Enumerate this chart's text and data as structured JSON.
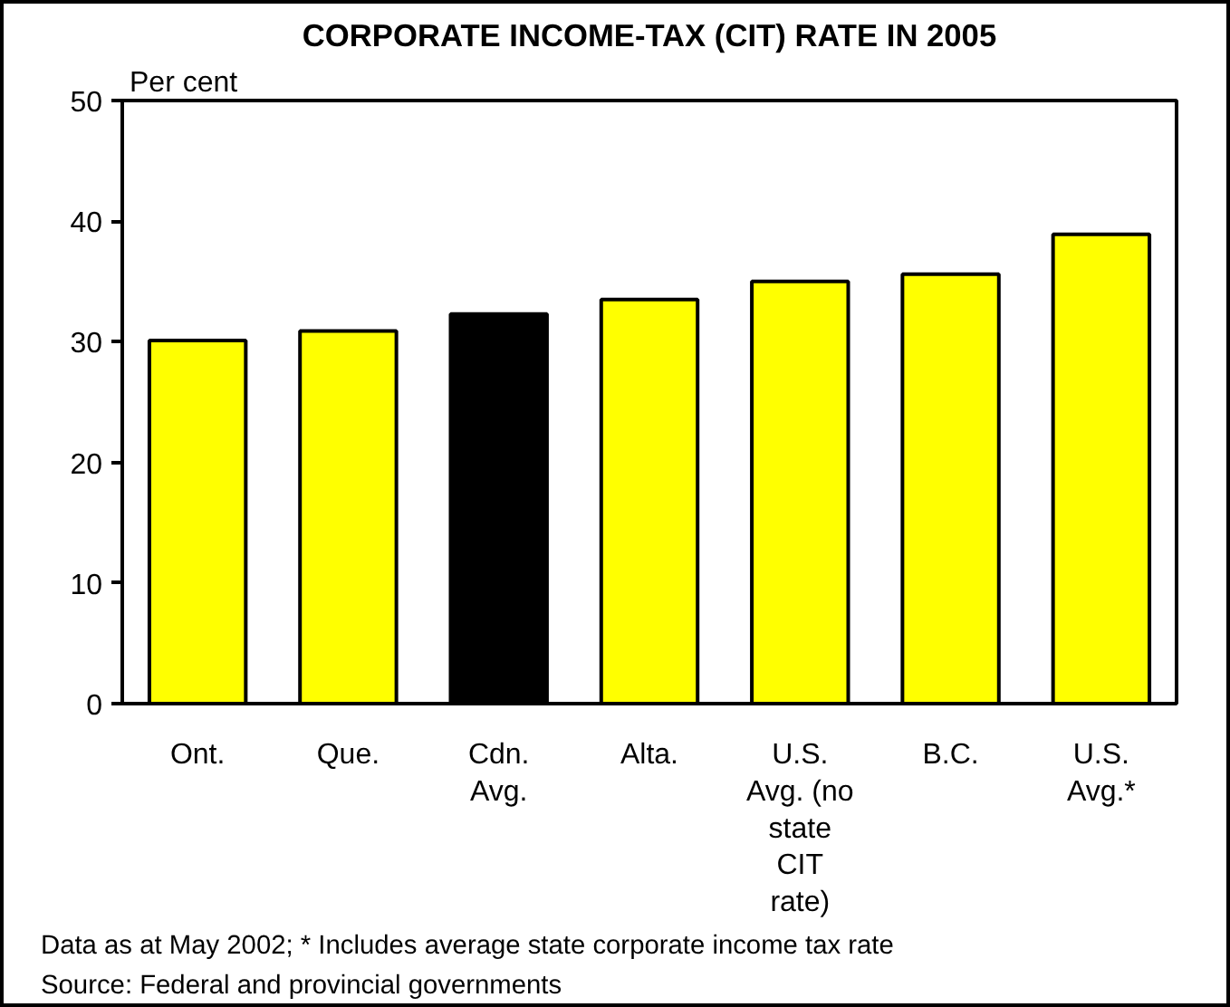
{
  "chart_data": {
    "type": "bar",
    "title": "CORPORATE INCOME-TAX (CIT) RATE IN 2005",
    "ylabel": "Per cent",
    "categories": [
      "Ont.",
      "Que.",
      "Cdn. Avg.",
      "Alta.",
      "U.S. Avg. (no state CIT rate)",
      "B.C.",
      "U.S. Avg.*"
    ],
    "values": [
      30.1,
      30.9,
      32.3,
      33.5,
      35.0,
      35.6,
      38.9
    ],
    "colors": [
      "#ffff00",
      "#ffff00",
      "#000000",
      "#ffff00",
      "#ffff00",
      "#ffff00",
      "#ffff00"
    ],
    "ylim": [
      0,
      50
    ],
    "yticks": [
      0,
      10,
      20,
      30,
      40,
      50
    ],
    "grid": false,
    "annotations": [
      "Data as at May 2002; * Includes average state corporate income tax rate",
      "Source: Federal and provincial governments"
    ]
  }
}
